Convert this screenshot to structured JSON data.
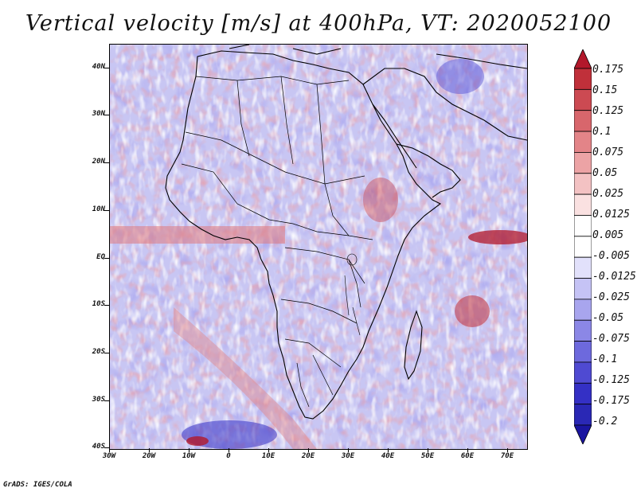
{
  "title": "Vertical velocity [m/s] at 400hPa, VT: 2020052100",
  "credit": "GrADS: IGES/COLA",
  "map": {
    "region": "Africa",
    "lon_range": [
      -30,
      75
    ],
    "lat_range": [
      -40,
      45
    ],
    "lat_ticks": [
      "40N",
      "30N",
      "20N",
      "10N",
      "EQ",
      "10S",
      "20S",
      "30S",
      "40S"
    ],
    "lon_ticks": [
      "30W",
      "20W",
      "10W",
      "0",
      "10E",
      "20E",
      "30E",
      "40E",
      "50E",
      "60E",
      "70E"
    ]
  },
  "colorbar": {
    "labels": [
      "0.175",
      "0.15",
      "0.125",
      "0.1",
      "0.075",
      "0.05",
      "0.025",
      "0.0125",
      "0.005",
      "-0.005",
      "-0.0125",
      "-0.025",
      "-0.05",
      "-0.075",
      "-0.1",
      "-0.125",
      "-0.175",
      "-0.2"
    ],
    "colors": [
      "#b2182b",
      "#c0303a",
      "#cc4a52",
      "#d8666c",
      "#e38488",
      "#eca3a5",
      "#f3c2c3",
      "#fae1e1",
      "#ffffff",
      "#ffffff",
      "#e2e1fb",
      "#c5c3f5",
      "#a8a5ee",
      "#8b87e6",
      "#6d69dd",
      "#4f4ad2",
      "#3430c5",
      "#2a28b5",
      "#1a15a0"
    ]
  }
}
